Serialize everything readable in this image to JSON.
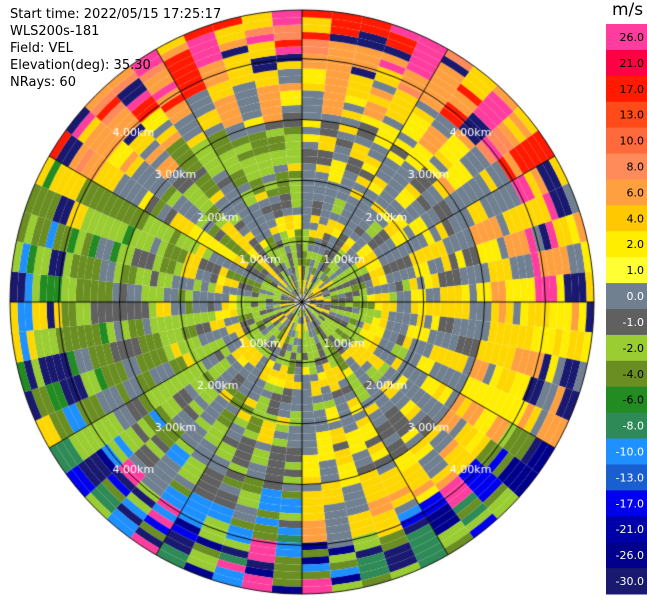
{
  "info": {
    "start_time": "Start time: 2022/05/15 17:25:17",
    "instrument": "WLS200s-181",
    "field": "Field: VEL",
    "elevation": "Elevation(deg): 35.30",
    "nrays": "NRays: 60"
  },
  "colorbar": {
    "unit": "m/s",
    "ticks": [
      "26.0",
      "21.0",
      "17.0",
      "13.0",
      "10.0",
      "8.0",
      "6.0",
      "4.0",
      "2.0",
      "1.0",
      "0.0",
      "-1.0",
      "-2.0",
      "-4.0",
      "-6.0",
      "-8.0",
      "-10.0",
      "-13.0",
      "-17.0",
      "-21.0",
      "-26.0",
      "-30.0"
    ],
    "colors": [
      "#ff3d9e",
      "#ff0044",
      "#ff1a00",
      "#ff4a1a",
      "#ff6a3c",
      "#ff8a5a",
      "#ffa040",
      "#ffc800",
      "#ffee00",
      "#ffff33",
      "#708090",
      "#606060",
      "#9acd32",
      "#6b8e23",
      "#228b22",
      "#2e8b57",
      "#1e90ff",
      "#1a5fd0",
      "#0000ee",
      "#0000aa",
      "#00008b",
      "#191970"
    ]
  },
  "chart_data": {
    "type": "heatmap",
    "title": "",
    "field": "VEL",
    "units": "m/s",
    "elevation_deg": 35.3,
    "n_rays": 60,
    "range_rings_km": [
      "1.00km",
      "2.00km",
      "3.00km",
      "4.00km"
    ],
    "range_ring_values_km": [
      1.0,
      2.0,
      3.0,
      4.0
    ],
    "max_range_km": 4.8,
    "azimuth_spokes_deg": [
      0,
      30,
      60,
      90,
      120,
      150,
      180,
      210,
      240,
      270,
      300,
      330
    ],
    "velocity_scale": [
      -30.0,
      26.0
    ],
    "approx_pattern": "Near-range (<1 km): gray/yellow-green mix; 1-2.3 km: alternating yellow and gray rings; east sector (0-180 deg) mostly gray/yellow, west sector (180-360 deg) mostly yellow-green/olive; north far range (>3.5 km): orange/red; south far range: blue/navy and mixed colors."
  }
}
